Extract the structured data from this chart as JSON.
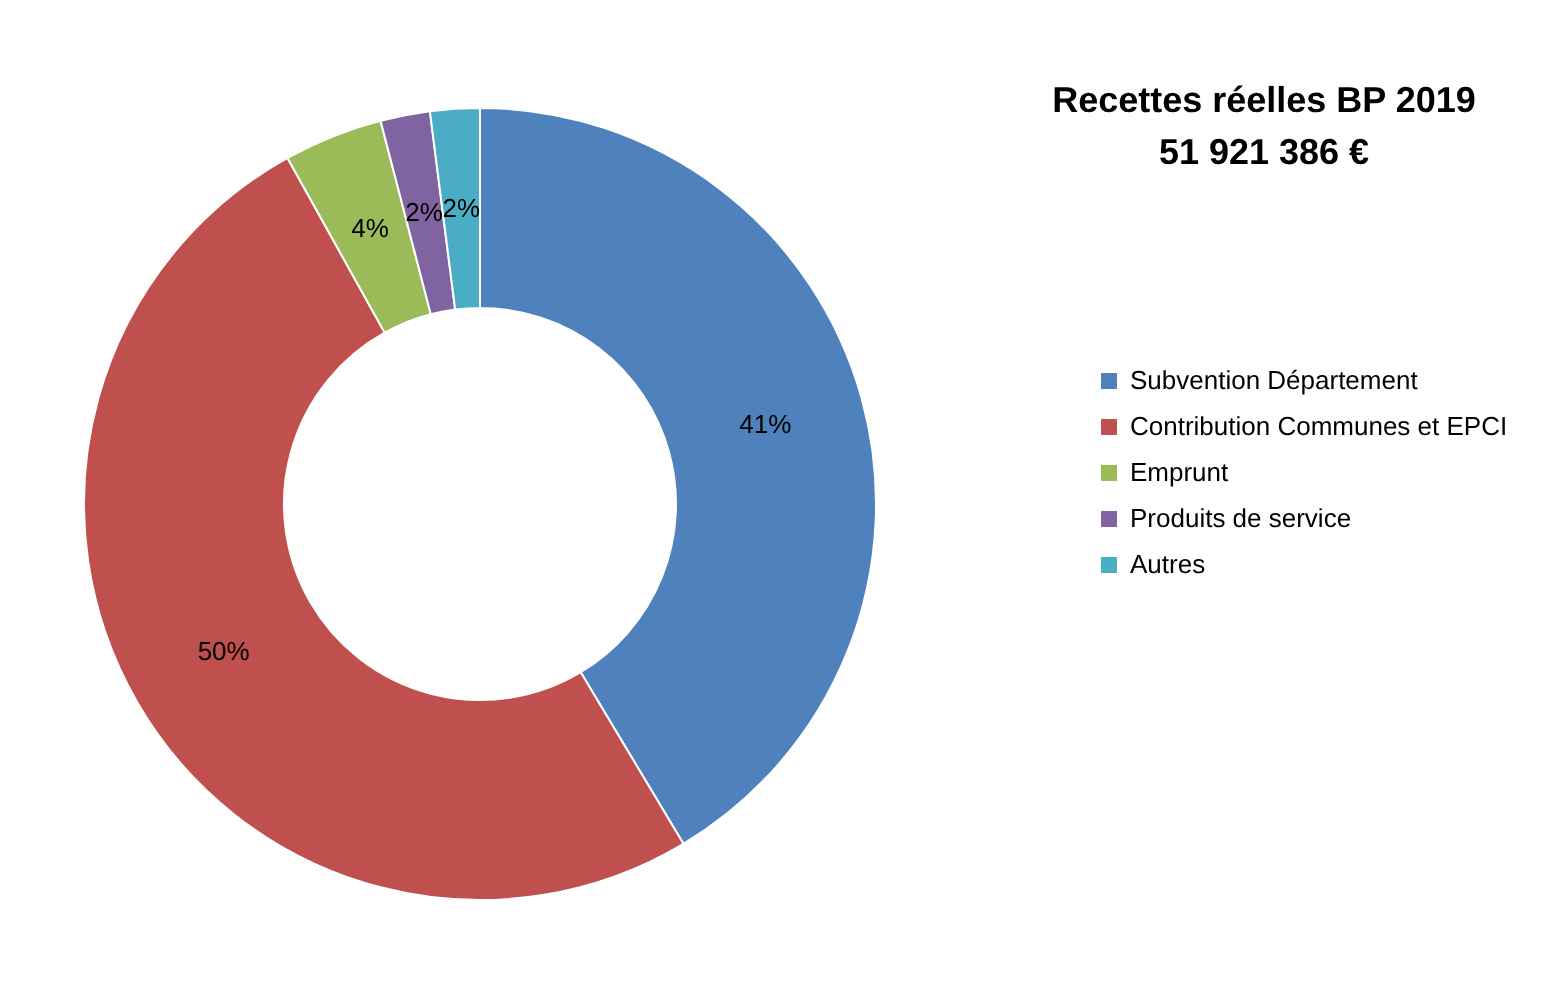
{
  "chart_data": {
    "type": "donut",
    "title": "Recettes réelles BP 2019\n51 921 386 €",
    "categories": [
      "Subvention Département",
      "Contribution Communes et EPCI",
      "Emprunt",
      "Produits de service",
      "Autres"
    ],
    "values": [
      41,
      50,
      4,
      2,
      2
    ],
    "value_labels": [
      "41%",
      "50%",
      "4%",
      "2%",
      "2%"
    ],
    "colors": [
      "#4f81bd",
      "#c0504d",
      "#9bbb59",
      "#8064a2",
      "#4bacc6"
    ],
    "legend": "right"
  }
}
